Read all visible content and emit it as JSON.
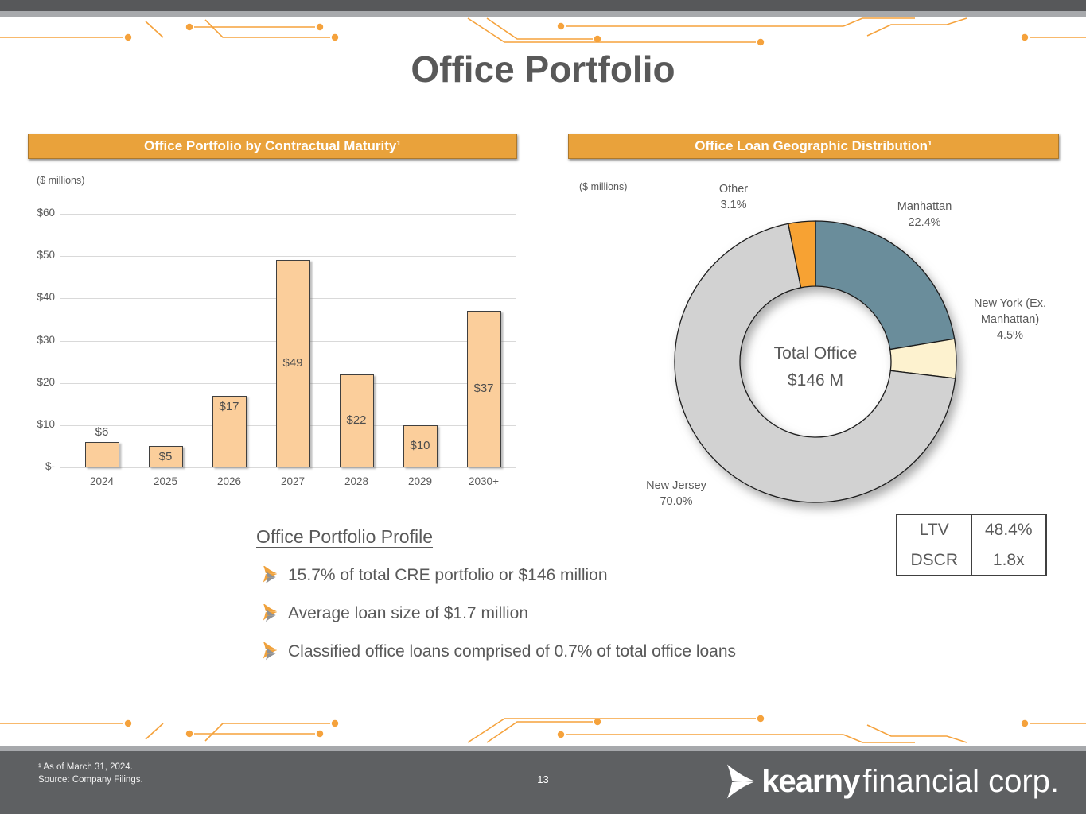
{
  "slide": {
    "title": "Office Portfolio",
    "page_number": "13",
    "footnote_line1": "¹ As of March 31, 2024.",
    "footnote_line2": "Source: Company Filings.",
    "logo_bold": "kearny",
    "logo_light": "financial corp."
  },
  "chart_data": [
    {
      "type": "bar",
      "title": "Office Portfolio by Contractual Maturity¹",
      "units_label": "($ millions)",
      "categories": [
        "2024",
        "2025",
        "2026",
        "2027",
        "2028",
        "2029",
        "2030+"
      ],
      "values": [
        6,
        5,
        17,
        49,
        22,
        10,
        37
      ],
      "value_labels": [
        "$6",
        "$5",
        "$17",
        "$49",
        "$22",
        "$10",
        "$37"
      ],
      "label_positions": [
        "above",
        "inside-top",
        "inside-top",
        "center",
        "center",
        "center",
        "center"
      ],
      "yticks": [
        "$-",
        "$10",
        "$20",
        "$30",
        "$40",
        "$50",
        "$60"
      ],
      "ylim": [
        0,
        60
      ],
      "grid": true,
      "bar_color": "#FBCE9B",
      "bar_border": "#3F3F3F"
    },
    {
      "type": "pie",
      "donut": true,
      "title": "Office Loan Geographic Distribution¹",
      "units_label": "($ millions)",
      "slices": [
        {
          "label": "Manhattan",
          "pct": 22.4,
          "pct_label": "22.4%",
          "color": "#6A8D9B"
        },
        {
          "label": "New York (Ex. Manhattan)",
          "pct": 4.5,
          "pct_label": "4.5%",
          "color": "#FDF2CF"
        },
        {
          "label": "New Jersey",
          "pct": 70.0,
          "pct_label": "70.0%",
          "color": "#D2D2D2"
        },
        {
          "label": "Other",
          "pct": 3.1,
          "pct_label": "3.1%",
          "color": "#F7A233"
        }
      ],
      "start_angle": "12 o'clock",
      "direction": "clockwise",
      "center_line1": "Total Office",
      "center_line2": "$146 M"
    }
  ],
  "metrics": {
    "rows": [
      {
        "label": "LTV",
        "value": "48.4%"
      },
      {
        "label": "DSCR",
        "value": "1.8x"
      }
    ]
  },
  "profile": {
    "heading": "Office Portfolio Profile",
    "bullets": [
      "15.7% of total CRE portfolio or $146 million",
      "Average loan size of $1.7 million",
      "Classified office loans comprised of 0.7% of total office loans"
    ]
  }
}
